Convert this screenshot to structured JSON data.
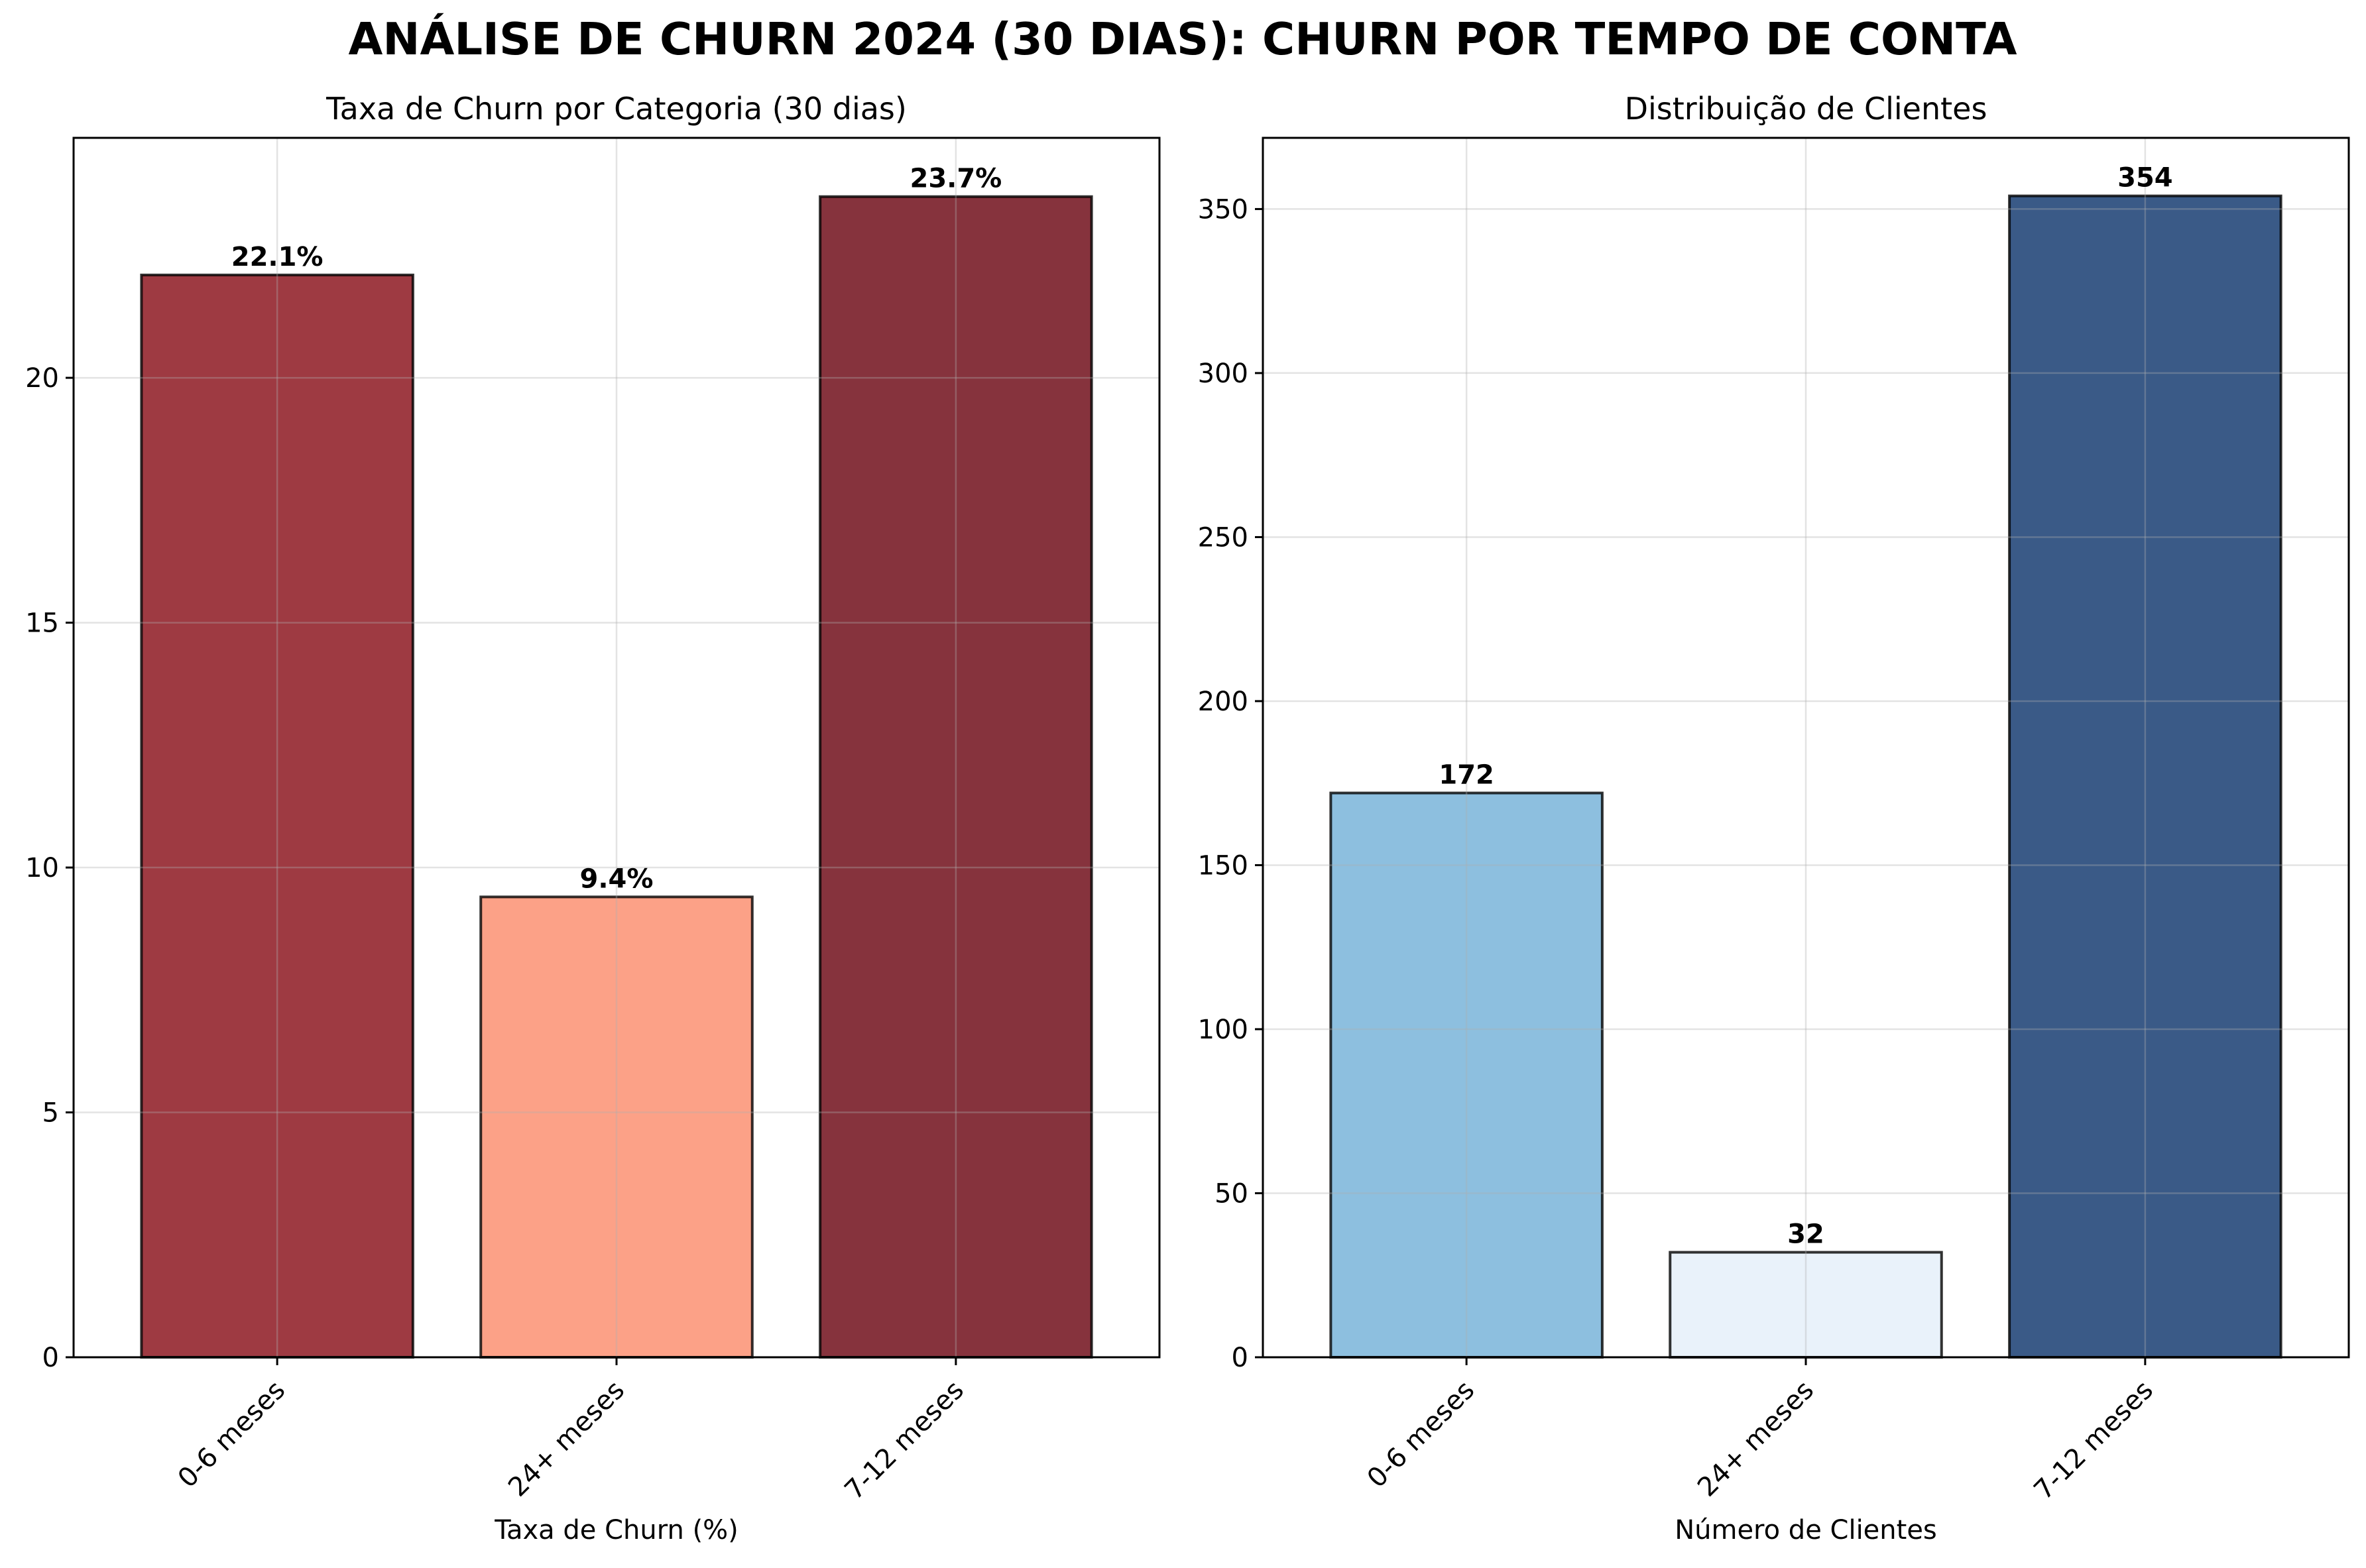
{
  "title": "ANÁLISE DE CHURN 2024 (30 DIAS): CHURN POR TEMPO DE CONTA",
  "chart_data": [
    {
      "type": "bar",
      "title": "Taxa de Churn por Categoria (30 dias)",
      "xlabel": "Taxa de Churn (%)",
      "ylabel": "",
      "categories": [
        "0-6 meses",
        "24+ meses",
        "7-12 meses"
      ],
      "values": [
        22.1,
        9.4,
        23.7
      ],
      "value_labels": [
        "22.1%",
        "9.4%",
        "23.7%"
      ],
      "colors": [
        "#9e3a42",
        "#fca187",
        "#86333d"
      ],
      "ylim": [
        0,
        24.9
      ],
      "yticks": [
        0,
        5,
        10,
        15,
        20
      ],
      "ytick_labels": [
        "0",
        "5",
        "10",
        "15",
        "20"
      ],
      "grid": true
    },
    {
      "type": "bar",
      "title": "Distribuição de Clientes",
      "xlabel": "Número de Clientes",
      "ylabel": "",
      "categories": [
        "0-6 meses",
        "24+ meses",
        "7-12 meses"
      ],
      "values": [
        172,
        32,
        354
      ],
      "value_labels": [
        "172",
        "32",
        "354"
      ],
      "colors": [
        "#8dbfdf",
        "#e9f2fa",
        "#3a5a87"
      ],
      "ylim": [
        0,
        371.7
      ],
      "yticks": [
        0,
        50,
        100,
        150,
        200,
        250,
        300,
        350
      ],
      "ytick_labels": [
        "0",
        "50",
        "100",
        "150",
        "200",
        "250",
        "300",
        "350"
      ],
      "grid": true
    }
  ]
}
